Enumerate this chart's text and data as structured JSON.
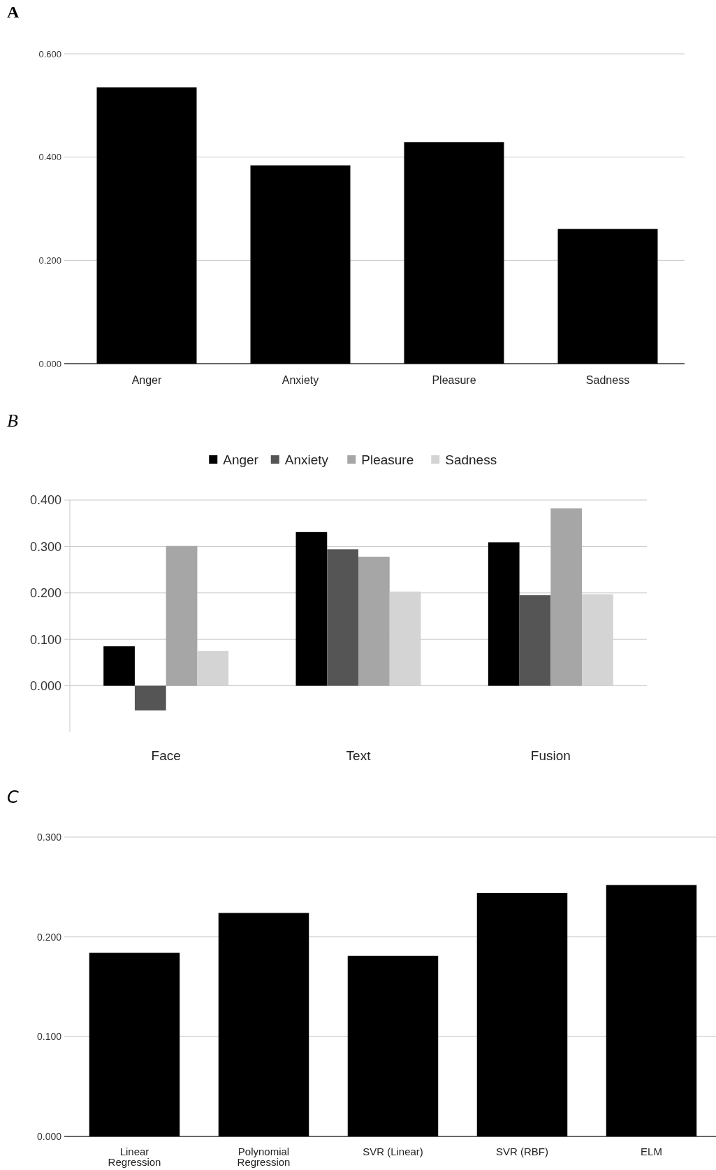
{
  "chart_data": [
    {
      "type": "bar",
      "title": "A",
      "categories": [
        "Anger",
        "Anxiety",
        "Pleasure",
        "Sadness"
      ],
      "values": [
        0.535,
        0.384,
        0.429,
        0.261
      ],
      "color": "#000000",
      "ylim": [
        0,
        0.6
      ],
      "yticks": [
        {
          "value": 0,
          "label": "0.000"
        },
        {
          "value": 0.2,
          "label": "0.200"
        },
        {
          "value": 0.4,
          "label": "0.400"
        },
        {
          "value": 0.6,
          "label": "0.600"
        }
      ],
      "grid": "y"
    },
    {
      "type": "bar",
      "title": "B",
      "categories": [
        "Face",
        "Text",
        "Fusion"
      ],
      "series": [
        {
          "name": "Anger",
          "color": "#000000",
          "values": [
            0.085,
            0.331,
            0.309
          ]
        },
        {
          "name": "Anxiety",
          "color": "#555555",
          "values": [
            -0.053,
            0.294,
            0.195
          ]
        },
        {
          "name": "Pleasure",
          "color": "#a6a6a6",
          "values": [
            0.301,
            0.278,
            0.382
          ]
        },
        {
          "name": "Sadness",
          "color": "#d4d4d4",
          "values": [
            0.075,
            0.203,
            0.197
          ]
        }
      ],
      "ylim": [
        -0.1,
        0.4
      ],
      "yticks": [
        {
          "value": 0,
          "label": "0.000"
        },
        {
          "value": 0.1,
          "label": "0.100"
        },
        {
          "value": 0.2,
          "label": "0.200"
        },
        {
          "value": 0.3,
          "label": "0.300"
        },
        {
          "value": 0.4,
          "label": "0.400"
        }
      ],
      "grid": "y",
      "legend": "top"
    },
    {
      "type": "bar",
      "title": "C",
      "categories": [
        "Linear Regression",
        "Polynomial Regression",
        "SVR (Linear)",
        "SVR (RBF)",
        "ELM"
      ],
      "values": [
        0.184,
        0.224,
        0.181,
        0.244,
        0.252
      ],
      "color": "#000000",
      "ylim": [
        0,
        0.3
      ],
      "yticks": [
        {
          "value": 0,
          "label": "0.000"
        },
        {
          "value": 0.1,
          "label": "0.100"
        },
        {
          "value": 0.2,
          "label": "0.200"
        },
        {
          "value": 0.3,
          "label": "0.300"
        }
      ],
      "grid": "y"
    }
  ]
}
